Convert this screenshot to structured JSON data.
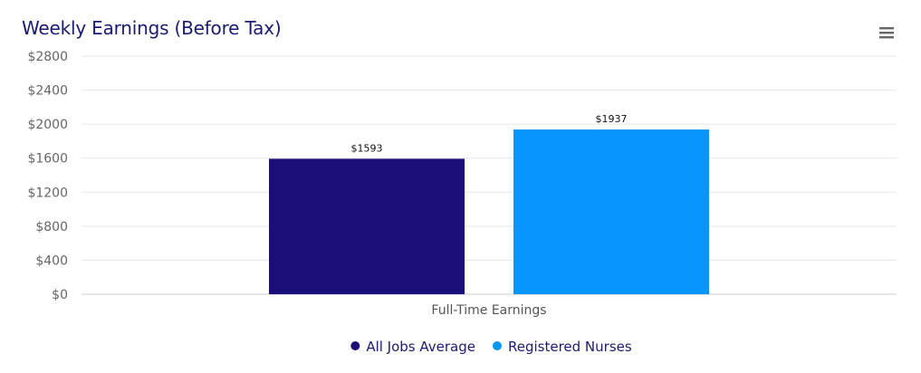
{
  "chart_title": "Weekly Earnings (Before Tax)",
  "menu_icon": "hamburger-menu-icon",
  "chart_data": {
    "type": "bar",
    "title": "Weekly Earnings (Before Tax)",
    "xlabel": "",
    "ylabel": "",
    "categories": [
      "Full-Time Earnings"
    ],
    "series": [
      {
        "name": "All Jobs Average",
        "values": [
          1593
        ],
        "color": "#1a0f78",
        "label": "$1593"
      },
      {
        "name": "Registered Nurses",
        "values": [
          1937
        ],
        "color": "#0895fd",
        "label": "$1937"
      }
    ],
    "ylim": [
      0,
      2800
    ],
    "yticks": [
      0,
      400,
      800,
      1200,
      1600,
      2000,
      2400,
      2800
    ],
    "ytick_labels": [
      "$0",
      "$400",
      "$800",
      "$1200",
      "$1600",
      "$2000",
      "$2400",
      "$2800"
    ],
    "grid": true,
    "legend_position": "bottom-center"
  }
}
